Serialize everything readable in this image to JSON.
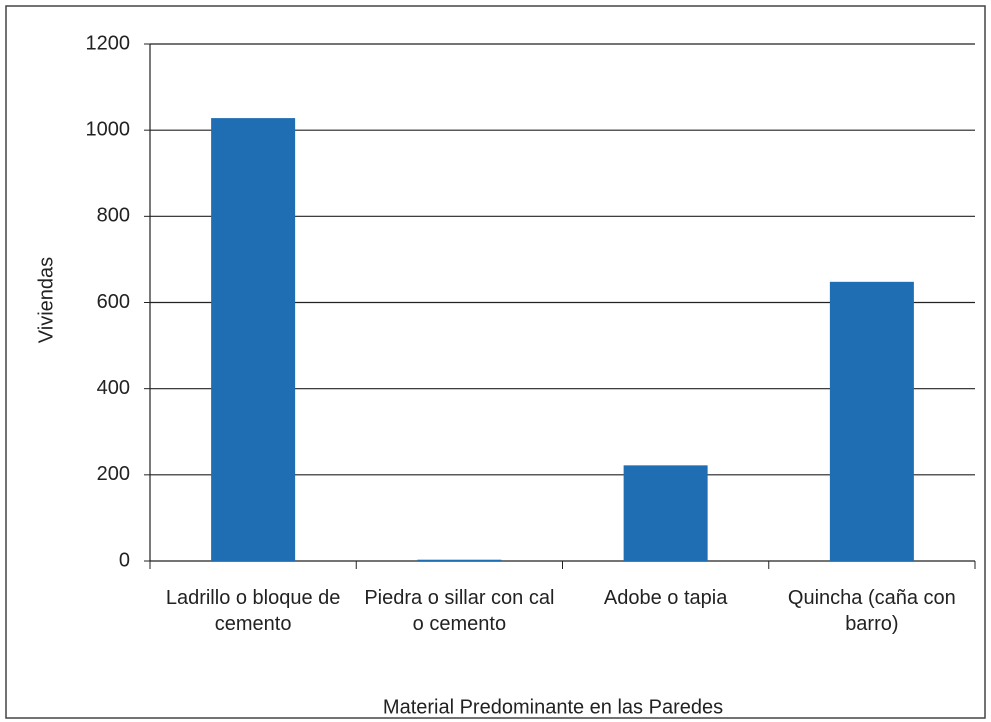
{
  "chart_data": {
    "type": "bar",
    "x_label": "Material Predominante en las Paredes",
    "y_label": "Viviendas",
    "categories": [
      "Ladrillo o bloque de cemento",
      "Piedra o sillar con cal o cemento",
      "Adobe o tapia",
      "Quincha (caña con barro)"
    ],
    "values": [
      1028,
      3,
      222,
      648
    ],
    "color": "#1f6db3",
    "ylim": [
      0,
      1200
    ],
    "yticks": [
      0,
      200,
      400,
      600,
      800,
      1000,
      1200
    ],
    "grid": true
  }
}
